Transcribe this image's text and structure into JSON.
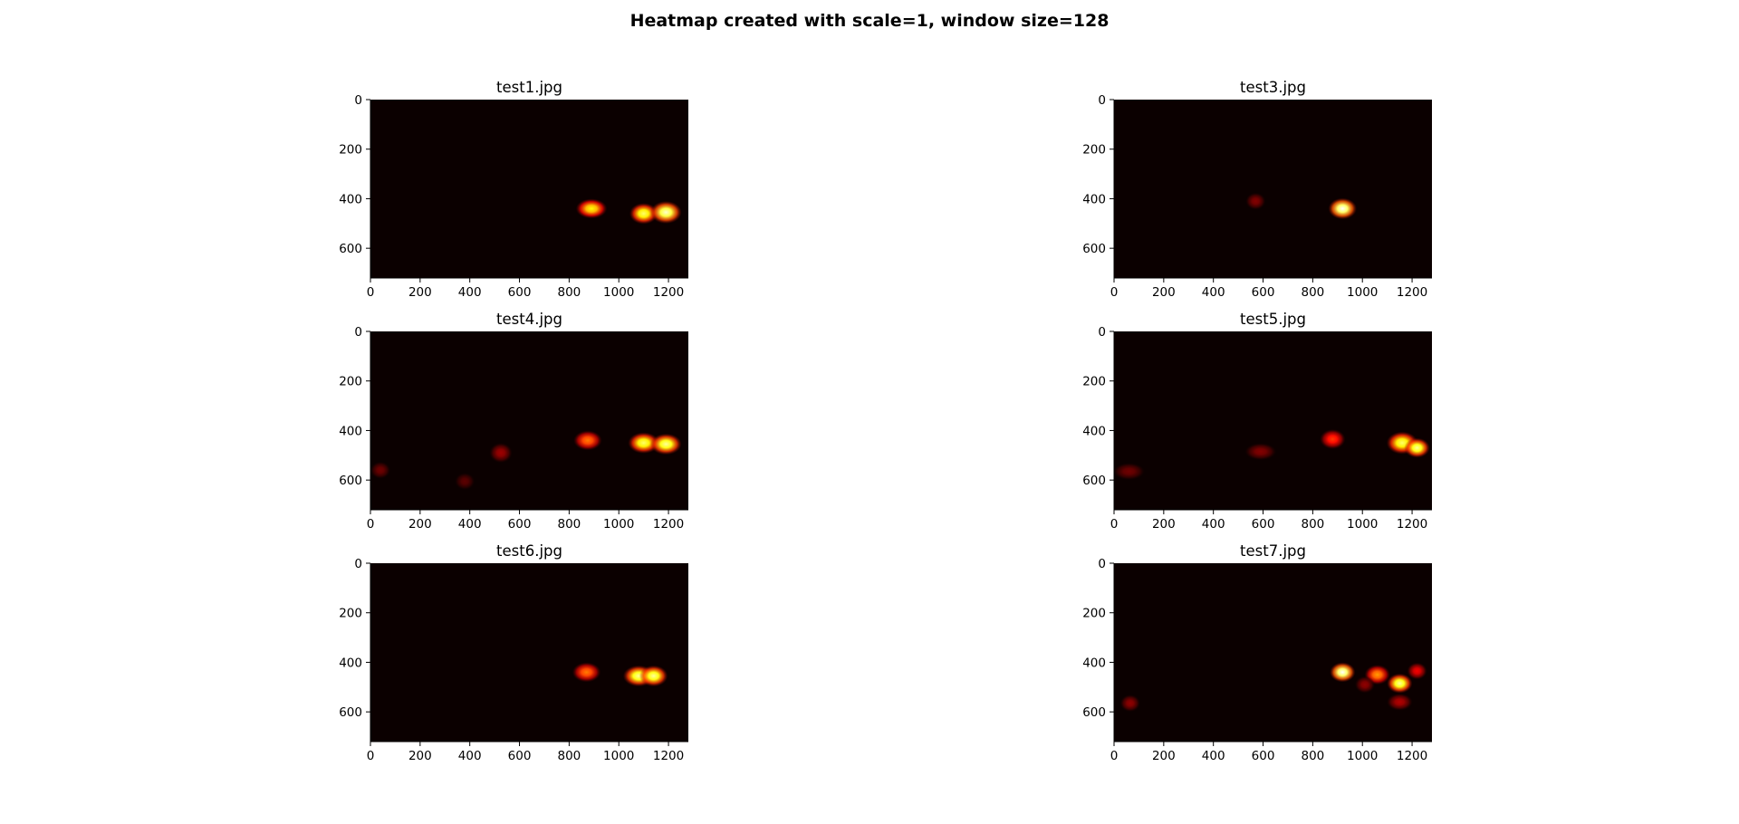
{
  "figure": {
    "suptitle": "Heatmap created with scale=1, window size=128"
  },
  "chart_data": [
    {
      "type": "heatmap",
      "title": "test1.jpg",
      "x_ticks": [
        0,
        200,
        400,
        600,
        800,
        1000,
        1200
      ],
      "y_ticks": [
        0,
        200,
        400,
        600
      ],
      "xlim": [
        0,
        1280
      ],
      "ylim": [
        720,
        0
      ],
      "colormap": "hot",
      "blobs": [
        {
          "x": 890,
          "y": 440,
          "w": 110,
          "h": 70,
          "intensity": 0.75
        },
        {
          "x": 1100,
          "y": 460,
          "w": 100,
          "h": 75,
          "intensity": 0.85
        },
        {
          "x": 1190,
          "y": 455,
          "w": 110,
          "h": 80,
          "intensity": 0.95
        }
      ]
    },
    {
      "type": "heatmap",
      "title": "test3.jpg",
      "x_ticks": [
        0,
        200,
        400,
        600,
        800,
        1000,
        1200
      ],
      "y_ticks": [
        0,
        200,
        400,
        600
      ],
      "xlim": [
        0,
        1280
      ],
      "ylim": [
        720,
        0
      ],
      "colormap": "hot",
      "blobs": [
        {
          "x": 570,
          "y": 410,
          "w": 70,
          "h": 60,
          "intensity": 0.18
        },
        {
          "x": 920,
          "y": 440,
          "w": 100,
          "h": 75,
          "intensity": 1.0
        }
      ]
    },
    {
      "type": "heatmap",
      "title": "test4.jpg",
      "x_ticks": [
        0,
        200,
        400,
        600,
        800,
        1000,
        1200
      ],
      "y_ticks": [
        0,
        200,
        400,
        600
      ],
      "xlim": [
        0,
        1280
      ],
      "ylim": [
        720,
        0
      ],
      "colormap": "hot",
      "blobs": [
        {
          "x": 40,
          "y": 560,
          "w": 70,
          "h": 60,
          "intensity": 0.15
        },
        {
          "x": 380,
          "y": 605,
          "w": 70,
          "h": 60,
          "intensity": 0.12
        },
        {
          "x": 525,
          "y": 490,
          "w": 80,
          "h": 70,
          "intensity": 0.22
        },
        {
          "x": 875,
          "y": 440,
          "w": 100,
          "h": 70,
          "intensity": 0.55
        },
        {
          "x": 1100,
          "y": 450,
          "w": 110,
          "h": 75,
          "intensity": 0.85
        },
        {
          "x": 1190,
          "y": 455,
          "w": 110,
          "h": 75,
          "intensity": 0.9
        }
      ]
    },
    {
      "type": "heatmap",
      "title": "test5.jpg",
      "x_ticks": [
        0,
        200,
        400,
        600,
        800,
        1000,
        1200
      ],
      "y_ticks": [
        0,
        200,
        400,
        600
      ],
      "xlim": [
        0,
        1280
      ],
      "ylim": [
        720,
        0
      ],
      "colormap": "hot",
      "blobs": [
        {
          "x": 60,
          "y": 565,
          "w": 110,
          "h": 60,
          "intensity": 0.15
        },
        {
          "x": 590,
          "y": 485,
          "w": 110,
          "h": 60,
          "intensity": 0.18
        },
        {
          "x": 880,
          "y": 435,
          "w": 90,
          "h": 70,
          "intensity": 0.45
        },
        {
          "x": 1160,
          "y": 450,
          "w": 110,
          "h": 80,
          "intensity": 0.85
        },
        {
          "x": 1220,
          "y": 470,
          "w": 90,
          "h": 70,
          "intensity": 0.9
        }
      ]
    },
    {
      "type": "heatmap",
      "title": "test6.jpg",
      "x_ticks": [
        0,
        200,
        400,
        600,
        800,
        1000,
        1200
      ],
      "y_ticks": [
        0,
        200,
        400,
        600
      ],
      "xlim": [
        0,
        1280
      ],
      "ylim": [
        720,
        0
      ],
      "colormap": "hot",
      "blobs": [
        {
          "x": 870,
          "y": 440,
          "w": 100,
          "h": 70,
          "intensity": 0.55
        },
        {
          "x": 1080,
          "y": 455,
          "w": 110,
          "h": 75,
          "intensity": 0.9
        },
        {
          "x": 1140,
          "y": 455,
          "w": 100,
          "h": 75,
          "intensity": 0.9
        }
      ]
    },
    {
      "type": "heatmap",
      "title": "test7.jpg",
      "x_ticks": [
        0,
        200,
        400,
        600,
        800,
        1000,
        1200
      ],
      "y_ticks": [
        0,
        200,
        400,
        600
      ],
      "xlim": [
        0,
        1280
      ],
      "ylim": [
        720,
        0
      ],
      "colormap": "hot",
      "blobs": [
        {
          "x": 65,
          "y": 565,
          "w": 70,
          "h": 60,
          "intensity": 0.2
        },
        {
          "x": 920,
          "y": 440,
          "w": 90,
          "h": 70,
          "intensity": 1.0
        },
        {
          "x": 1060,
          "y": 450,
          "w": 90,
          "h": 70,
          "intensity": 0.6
        },
        {
          "x": 1010,
          "y": 490,
          "w": 70,
          "h": 60,
          "intensity": 0.2
        },
        {
          "x": 1150,
          "y": 485,
          "w": 90,
          "h": 70,
          "intensity": 0.9
        },
        {
          "x": 1220,
          "y": 435,
          "w": 70,
          "h": 60,
          "intensity": 0.35
        },
        {
          "x": 1150,
          "y": 560,
          "w": 90,
          "h": 60,
          "intensity": 0.25
        }
      ]
    }
  ]
}
